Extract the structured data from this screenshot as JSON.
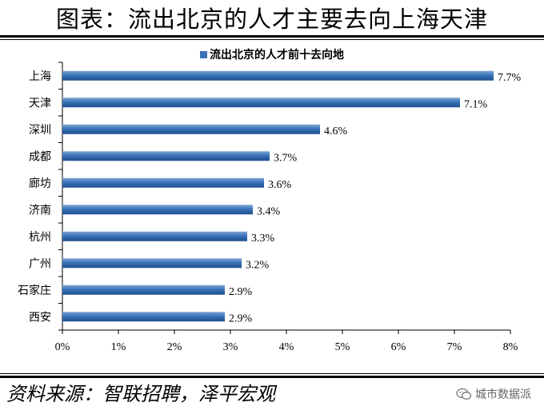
{
  "page_title": "图表：流出北京的人才主要去向上海天津",
  "chart_data": {
    "type": "bar",
    "orientation": "horizontal",
    "title": "",
    "categories": [
      "上海",
      "天津",
      "深圳",
      "成都",
      "廊坊",
      "济南",
      "杭州",
      "广州",
      "石家庄",
      "西安"
    ],
    "series": [
      {
        "name": "流出北京的人才前十去向地",
        "values": [
          7.7,
          7.1,
          4.6,
          3.7,
          3.6,
          3.4,
          3.3,
          3.2,
          2.9,
          2.9
        ]
      }
    ],
    "data_labels": [
      "7.7%",
      "7.1%",
      "4.6%",
      "3.7%",
      "3.6%",
      "3.4%",
      "3.3%",
      "3.2%",
      "2.9%",
      "2.9%"
    ],
    "xlim": [
      0,
      8
    ],
    "xticks": [
      "0%",
      "1%",
      "2%",
      "3%",
      "4%",
      "5%",
      "6%",
      "7%",
      "8%"
    ],
    "xlabel": "",
    "ylabel": "",
    "grid": false,
    "legend": "top-center",
    "bar_color": "#3a73b8"
  },
  "source_text": "资料来源：智联招聘，泽平宏观",
  "watermark": {
    "text": "城市数据派",
    "icon": "wechat-icon"
  }
}
